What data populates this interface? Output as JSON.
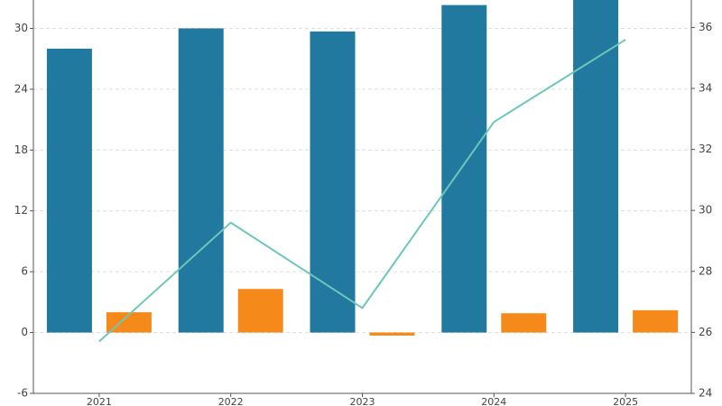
{
  "chart_data": {
    "type": "bar-line",
    "categories": [
      "2021",
      "2022",
      "2023",
      "2024",
      "2025"
    ],
    "series": [
      {
        "type": "bar",
        "color": "#21799f",
        "values": [
          28.0,
          30.0,
          29.7,
          32.3,
          34.0
        ]
      },
      {
        "type": "bar",
        "color": "#f5891a",
        "values": [
          2.0,
          4.3,
          -0.3,
          1.9,
          2.2
        ]
      },
      {
        "type": "line",
        "axis": "y2",
        "color": "#6cc7b9",
        "values": [
          25.7,
          29.6,
          26.8,
          32.9,
          35.6
        ]
      }
    ],
    "ylim": [
      -6,
      32.8
    ],
    "yticks": [
      -6,
      0,
      6,
      12,
      18,
      24,
      30
    ],
    "y2lim": [
      24,
      36.9
    ],
    "y2ticks": [
      24,
      26,
      28,
      30,
      32,
      34,
      36
    ],
    "grid": true
  }
}
